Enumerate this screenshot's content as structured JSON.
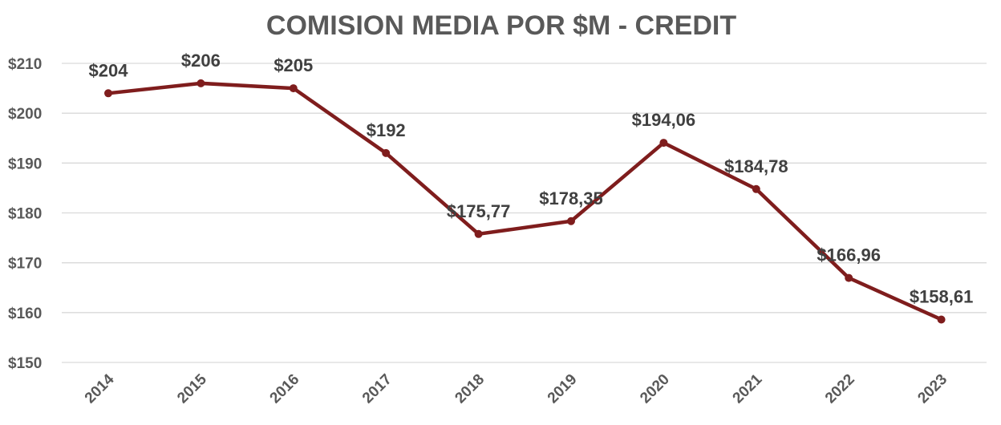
{
  "chart_data": {
    "type": "line",
    "title": "COMISION MEDIA POR $M - CREDIT",
    "xlabel": "",
    "ylabel": "",
    "categories": [
      "2014",
      "2015",
      "2016",
      "2017",
      "2018",
      "2019",
      "2020",
      "2021",
      "2022",
      "2023"
    ],
    "series": [
      {
        "values": [
          204,
          206,
          205,
          192,
          175.77,
          178.35,
          194.06,
          184.78,
          166.96,
          158.61
        ],
        "data_labels": [
          "$204",
          "$206",
          "$205",
          "$192",
          "$175,77",
          "$178,35",
          "$194,06",
          "$184,78",
          "$166,96",
          "$158,61"
        ],
        "color": "#7f1d1d"
      }
    ],
    "ylim": [
      150,
      210
    ],
    "yticks": [
      150,
      160,
      170,
      180,
      190,
      200,
      210
    ],
    "ytick_labels": [
      "$150",
      "$160",
      "$170",
      "$180",
      "$190",
      "$200",
      "$210"
    ],
    "grid": true,
    "legend": "none",
    "colors": {
      "line": "#7f1d1d",
      "title": "#595959",
      "grid": "#d9d9d9"
    }
  }
}
